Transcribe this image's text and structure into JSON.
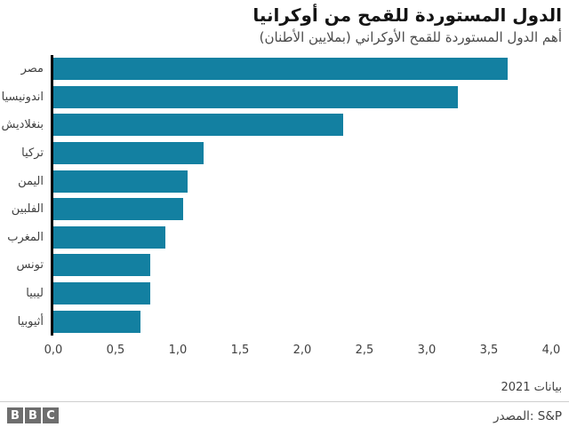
{
  "header": {
    "title": "الدول المستوردة للقمح من أوكرانيا",
    "subtitle": "أهم الدول المستوردة للقمح الأوكراني (بملايين الأطنان)"
  },
  "chart_data": {
    "type": "bar",
    "orientation": "horizontal",
    "title": "الدول المستوردة للقمح من أوكرانيا",
    "subtitle": "أهم الدول المستوردة للقمح الأوكراني (بملايين الأطنان)",
    "categories": [
      "مصر",
      "اندونيسيا",
      "بنغلاديش",
      "تركيا",
      "اليمن",
      "الفلبين",
      "المغرب",
      "تونس",
      "ليبيا",
      "أثيوبيا"
    ],
    "values": [
      3.65,
      3.25,
      2.33,
      1.21,
      1.08,
      1.04,
      0.9,
      0.78,
      0.78,
      0.7
    ],
    "xlabel": "",
    "ylabel": "",
    "xlim": [
      0,
      4
    ],
    "x_ticks": [
      "0,0",
      "0,5",
      "1,0",
      "1,5",
      "2,0",
      "2,5",
      "3,0",
      "3,5",
      "4,0"
    ],
    "grid": false,
    "legend": false,
    "bar_color": "#1380a1",
    "axis_line_color": "#000000"
  },
  "footer": {
    "note": "بيانات 2021",
    "source": "المصدر: S&P",
    "logo_letters": [
      "B",
      "B",
      "C"
    ]
  }
}
